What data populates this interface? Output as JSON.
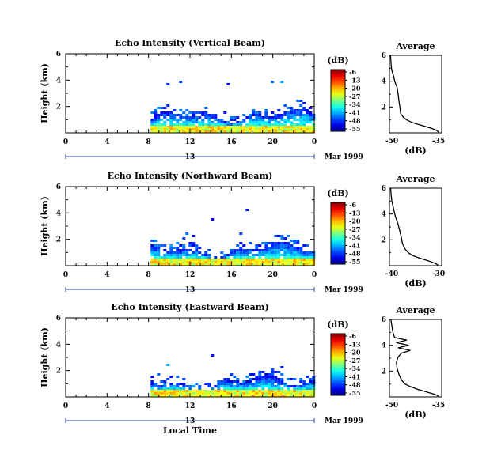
{
  "chart_data": [
    {
      "type": "heatmap",
      "title": "Echo Intensity (Vertical Beam)",
      "ylabel": "Height (km)",
      "x_ticks": [
        "0",
        "4",
        "8",
        "12",
        "16",
        "20",
        "0"
      ],
      "x_range": [
        0,
        24
      ],
      "y_ticks": [
        "2",
        "4",
        "6"
      ],
      "y_range": [
        0,
        6
      ],
      "date_day": "13",
      "date_month_year": "Mar 1999",
      "colorbar": {
        "unit": "(dB)",
        "ticks": [
          "-6",
          "-13",
          "-20",
          "-27",
          "-34",
          "-41",
          "-48",
          "-55"
        ]
      },
      "profile": {
        "title": "Average",
        "xlabel": "(dB)",
        "x_ticks": [
          "-50",
          "-35"
        ],
        "x_range": [
          -50,
          -35
        ],
        "y_ticks": [
          "2",
          "4",
          "6"
        ],
        "y_range": [
          0,
          6
        ],
        "points": [
          [
            -35.8,
            0.05
          ],
          [
            -36.5,
            0.2
          ],
          [
            -38.5,
            0.4
          ],
          [
            -41.0,
            0.6
          ],
          [
            -43.5,
            0.8
          ],
          [
            -45.0,
            1.0
          ],
          [
            -46.0,
            1.2
          ],
          [
            -46.8,
            1.5
          ],
          [
            -47.0,
            2.0
          ],
          [
            -47.3,
            2.5
          ],
          [
            -47.5,
            3.0
          ],
          [
            -47.8,
            3.5
          ],
          [
            -48.5,
            4.0
          ],
          [
            -48.8,
            4.4
          ],
          [
            -49.3,
            4.8
          ],
          [
            -49.5,
            5.2
          ],
          [
            -49.6,
            5.6
          ],
          [
            -49.7,
            6.0
          ]
        ]
      }
    },
    {
      "type": "heatmap",
      "title": "Echo Intensity (Northward Beam)",
      "ylabel": "Height (km)",
      "x_ticks": [
        "0",
        "4",
        "8",
        "12",
        "16",
        "20",
        "0"
      ],
      "x_range": [
        0,
        24
      ],
      "y_ticks": [
        "2",
        "4",
        "6"
      ],
      "y_range": [
        0,
        6
      ],
      "date_day": "13",
      "date_month_year": "Mar 1999",
      "colorbar": {
        "unit": "(dB)",
        "ticks": [
          "-6",
          "-13",
          "-20",
          "-27",
          "-34",
          "-41",
          "-48",
          "-55"
        ]
      },
      "profile": {
        "title": "Average",
        "xlabel": "(dB)",
        "x_ticks": [
          "-40",
          "-30"
        ],
        "x_range": [
          -50,
          -28
        ],
        "y_ticks": [
          "2",
          "4",
          "6"
        ],
        "y_range": [
          0,
          6
        ],
        "points": [
          [
            -29.5,
            0.05
          ],
          [
            -31.0,
            0.2
          ],
          [
            -34.0,
            0.4
          ],
          [
            -37.5,
            0.6
          ],
          [
            -40.5,
            0.8
          ],
          [
            -42.0,
            1.0
          ],
          [
            -43.5,
            1.3
          ],
          [
            -44.5,
            1.7
          ],
          [
            -45.0,
            2.2
          ],
          [
            -45.8,
            2.8
          ],
          [
            -46.5,
            3.3
          ],
          [
            -47.5,
            3.8
          ],
          [
            -48.0,
            4.2
          ],
          [
            -48.5,
            4.6
          ],
          [
            -49.0,
            5.0
          ],
          [
            -49.3,
            5.5
          ],
          [
            -49.5,
            6.0
          ]
        ]
      }
    },
    {
      "type": "heatmap",
      "title": "Echo Intensity (Eastward Beam)",
      "ylabel": "Height (km)",
      "xlabel": "Local Time",
      "x_ticks": [
        "0",
        "4",
        "8",
        "12",
        "16",
        "20",
        "0"
      ],
      "x_range": [
        0,
        24
      ],
      "y_ticks": [
        "2",
        "4",
        "6"
      ],
      "y_range": [
        0,
        6
      ],
      "date_day": "13",
      "date_month_year": "Mar 1999",
      "colorbar": {
        "unit": "(dB)",
        "ticks": [
          "-6",
          "-13",
          "-20",
          "-27",
          "-34",
          "-41",
          "-48",
          "-55"
        ]
      },
      "profile": {
        "title": "Average",
        "xlabel": "(dB)",
        "x_ticks": [
          "-50",
          "-35"
        ],
        "x_range": [
          -50,
          -35
        ],
        "y_ticks": [
          "2",
          "4",
          "6"
        ],
        "y_range": [
          0,
          6
        ],
        "points": [
          [
            -35.8,
            0.05
          ],
          [
            -37.0,
            0.2
          ],
          [
            -39.5,
            0.4
          ],
          [
            -42.0,
            0.6
          ],
          [
            -44.0,
            0.8
          ],
          [
            -45.5,
            1.0
          ],
          [
            -46.5,
            1.3
          ],
          [
            -47.2,
            1.7
          ],
          [
            -47.8,
            2.2
          ],
          [
            -48.0,
            2.7
          ],
          [
            -47.5,
            3.1
          ],
          [
            -46.5,
            3.4
          ],
          [
            -44.0,
            3.6
          ],
          [
            -47.5,
            3.8
          ],
          [
            -44.5,
            4.0
          ],
          [
            -48.0,
            4.2
          ],
          [
            -45.0,
            4.4
          ],
          [
            -48.5,
            4.6
          ],
          [
            -49.0,
            5.0
          ],
          [
            -49.3,
            5.5
          ],
          [
            -49.6,
            6.0
          ]
        ]
      }
    }
  ]
}
